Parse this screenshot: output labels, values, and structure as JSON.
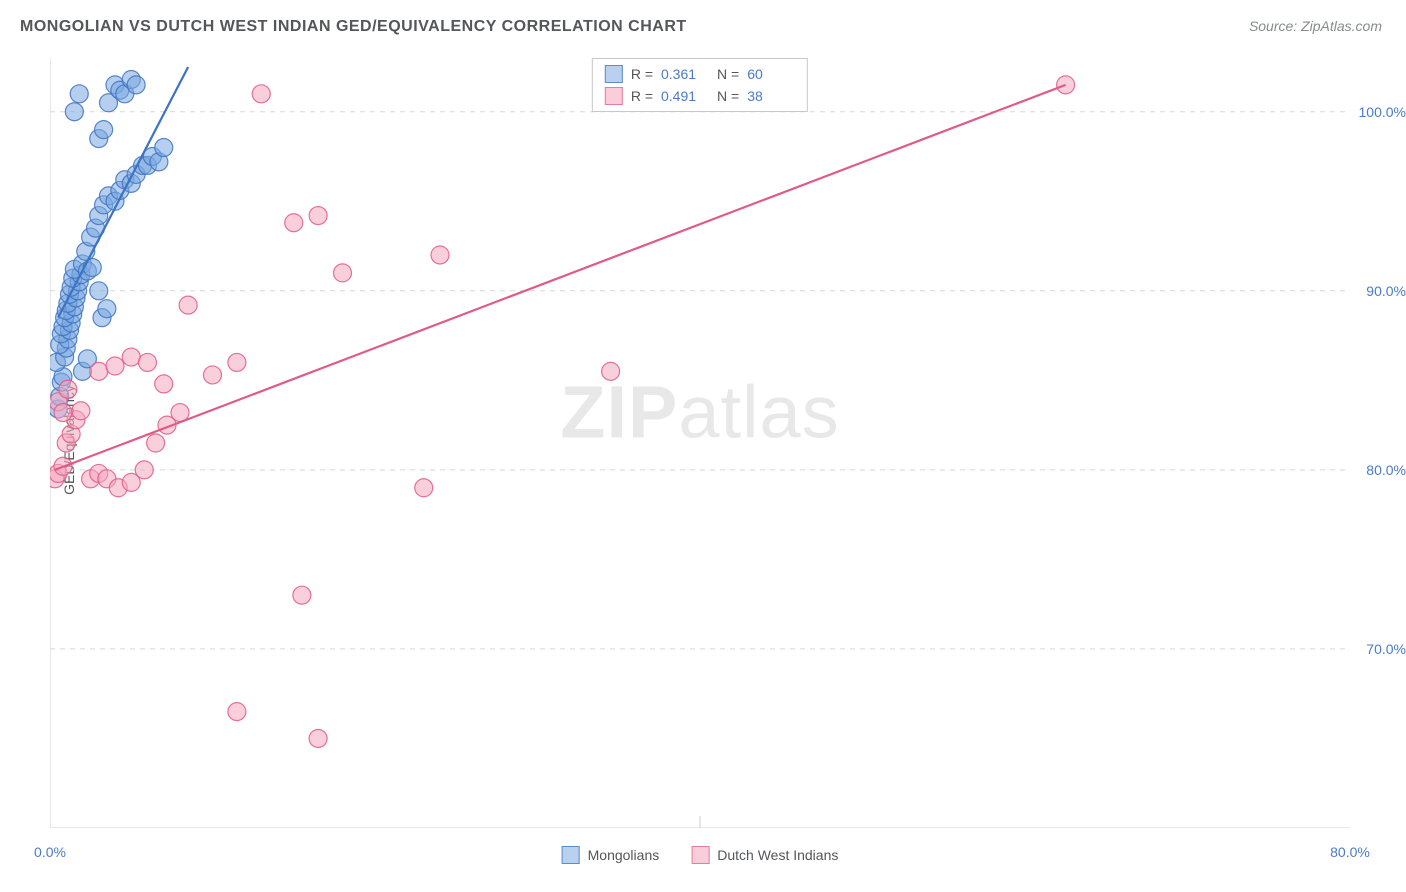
{
  "title": "MONGOLIAN VS DUTCH WEST INDIAN GED/EQUIVALENCY CORRELATION CHART",
  "source": "Source: ZipAtlas.com",
  "y_axis_label": "GED/Equivalency",
  "watermark_zip": "ZIP",
  "watermark_atlas": "atlas",
  "chart": {
    "type": "scatter",
    "xlim": [
      0,
      80
    ],
    "ylim": [
      60,
      103
    ],
    "y_ticks": [
      70,
      80,
      90,
      100
    ],
    "y_tick_labels": [
      "70.0%",
      "80.0%",
      "90.0%",
      "100.0%"
    ],
    "x_ticks": [
      0,
      40,
      80
    ],
    "x_tick_labels": [
      "0.0%",
      "",
      "80.0%"
    ],
    "x_minor_ticks": [
      0,
      8,
      16,
      24,
      32,
      40,
      48,
      56,
      64,
      72,
      80
    ],
    "grid_color": "#d8d8d8",
    "axis_color": "#d0d0d0",
    "background_color": "#ffffff",
    "label_color": "#55565a",
    "tick_label_color": "#4a7bc8",
    "label_fontsize": 14,
    "title_fontsize": 16,
    "marker_radius": 9,
    "marker_opacity": 0.55,
    "marker_stroke_width": 1.2,
    "trend_line_width": 2.2,
    "series": [
      {
        "name": "Mongolians",
        "fill_color": "#7aa8e0",
        "stroke_color": "#3d73c2",
        "swatch_fill": "#b9d0ee",
        "swatch_border": "#5a8cd0",
        "R": "0.361",
        "N": "60",
        "trend": {
          "x1": 0.5,
          "y1": 88.5,
          "x2": 8.5,
          "y2": 102.5
        },
        "points": [
          [
            0.5,
            83.4
          ],
          [
            0.6,
            84.1
          ],
          [
            0.7,
            84.9
          ],
          [
            0.8,
            85.2
          ],
          [
            0.4,
            86.0
          ],
          [
            0.9,
            86.3
          ],
          [
            1.0,
            86.8
          ],
          [
            0.6,
            87.0
          ],
          [
            1.1,
            87.3
          ],
          [
            0.7,
            87.6
          ],
          [
            1.2,
            87.8
          ],
          [
            0.8,
            88.0
          ],
          [
            1.3,
            88.2
          ],
          [
            0.9,
            88.5
          ],
          [
            1.4,
            88.7
          ],
          [
            1.0,
            88.9
          ],
          [
            1.5,
            89.1
          ],
          [
            1.1,
            89.3
          ],
          [
            1.6,
            89.6
          ],
          [
            1.2,
            89.8
          ],
          [
            1.7,
            90.0
          ],
          [
            1.3,
            90.2
          ],
          [
            1.8,
            90.5
          ],
          [
            1.4,
            90.7
          ],
          [
            1.9,
            90.9
          ],
          [
            1.5,
            91.2
          ],
          [
            2.0,
            91.5
          ],
          [
            2.3,
            91.1
          ],
          [
            2.6,
            91.3
          ],
          [
            3.0,
            90.0
          ],
          [
            3.2,
            88.5
          ],
          [
            3.5,
            89.0
          ],
          [
            2.2,
            92.2
          ],
          [
            2.5,
            93.0
          ],
          [
            2.8,
            93.5
          ],
          [
            3.0,
            94.2
          ],
          [
            3.3,
            94.8
          ],
          [
            3.6,
            95.3
          ],
          [
            4.0,
            95.0
          ],
          [
            4.3,
            95.6
          ],
          [
            4.6,
            96.2
          ],
          [
            5.0,
            96.0
          ],
          [
            5.3,
            96.5
          ],
          [
            5.7,
            97.0
          ],
          [
            6.0,
            97.0
          ],
          [
            6.3,
            97.5
          ],
          [
            6.7,
            97.2
          ],
          [
            7.0,
            98.0
          ],
          [
            3.0,
            98.5
          ],
          [
            3.3,
            99.0
          ],
          [
            3.6,
            100.5
          ],
          [
            4.0,
            101.5
          ],
          [
            4.3,
            101.2
          ],
          [
            4.6,
            101.0
          ],
          [
            5.0,
            101.8
          ],
          [
            5.3,
            101.5
          ],
          [
            1.8,
            101.0
          ],
          [
            1.5,
            100.0
          ],
          [
            2.0,
            85.5
          ],
          [
            2.3,
            86.2
          ]
        ]
      },
      {
        "name": "Dutch West Indians",
        "fill_color": "#f5a8bf",
        "stroke_color": "#e05a85",
        "swatch_fill": "#f9cdd9",
        "swatch_border": "#e87ba0",
        "R": "0.491",
        "N": "38",
        "trend": {
          "x1": 0.3,
          "y1": 80.0,
          "x2": 62.5,
          "y2": 101.5
        },
        "points": [
          [
            0.3,
            79.5
          ],
          [
            0.5,
            79.8
          ],
          [
            0.8,
            80.2
          ],
          [
            1.0,
            81.5
          ],
          [
            1.3,
            82.0
          ],
          [
            1.6,
            82.8
          ],
          [
            1.9,
            83.3
          ],
          [
            0.5,
            83.8
          ],
          [
            0.8,
            83.2
          ],
          [
            1.1,
            84.5
          ],
          [
            2.5,
            79.5
          ],
          [
            3.0,
            79.8
          ],
          [
            3.5,
            79.5
          ],
          [
            4.2,
            79.0
          ],
          [
            5.0,
            79.3
          ],
          [
            5.8,
            80.0
          ],
          [
            6.5,
            81.5
          ],
          [
            7.2,
            82.5
          ],
          [
            8.0,
            83.2
          ],
          [
            3.0,
            85.5
          ],
          [
            4.0,
            85.8
          ],
          [
            5.0,
            86.3
          ],
          [
            6.0,
            86.0
          ],
          [
            7.0,
            84.8
          ],
          [
            8.5,
            89.2
          ],
          [
            10.0,
            85.3
          ],
          [
            11.5,
            86.0
          ],
          [
            13.0,
            101.0
          ],
          [
            15.0,
            93.8
          ],
          [
            16.5,
            94.2
          ],
          [
            18.0,
            91.0
          ],
          [
            23.0,
            79.0
          ],
          [
            24.0,
            92.0
          ],
          [
            15.5,
            73.0
          ],
          [
            11.5,
            66.5
          ],
          [
            16.5,
            65.0
          ],
          [
            34.5,
            85.5
          ],
          [
            62.5,
            101.5
          ]
        ]
      }
    ]
  },
  "legend_top": {
    "r_label": "R =",
    "n_label": "N ="
  },
  "legend_bottom_series": [
    "Mongolians",
    "Dutch West Indians"
  ]
}
